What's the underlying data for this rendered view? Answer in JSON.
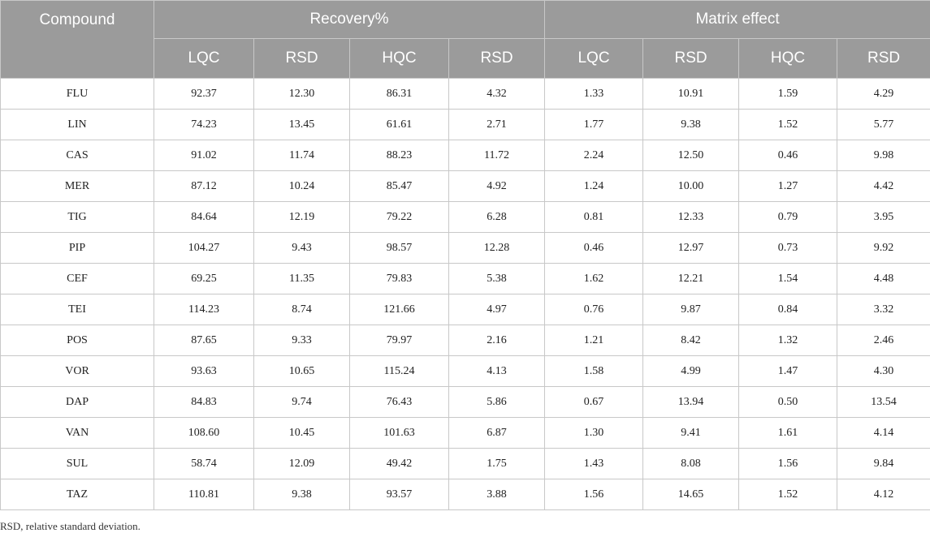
{
  "header": {
    "compound": "Compound",
    "recovery": "Recovery%",
    "matrix": "Matrix effect",
    "subcols": [
      "LQC",
      "RSD",
      "HQC",
      "RSD",
      "LQC",
      "RSD",
      "HQC",
      "RSD"
    ]
  },
  "rows": [
    [
      "FLU",
      "92.37",
      "12.30",
      "86.31",
      "4.32",
      "1.33",
      "10.91",
      "1.59",
      "4.29"
    ],
    [
      "LIN",
      "74.23",
      "13.45",
      "61.61",
      "2.71",
      "1.77",
      "9.38",
      "1.52",
      "5.77"
    ],
    [
      "CAS",
      "91.02",
      "11.74",
      "88.23",
      "11.72",
      "2.24",
      "12.50",
      "0.46",
      "9.98"
    ],
    [
      "MER",
      "87.12",
      "10.24",
      "85.47",
      "4.92",
      "1.24",
      "10.00",
      "1.27",
      "4.42"
    ],
    [
      "TIG",
      "84.64",
      "12.19",
      "79.22",
      "6.28",
      "0.81",
      "12.33",
      "0.79",
      "3.95"
    ],
    [
      "PIP",
      "104.27",
      "9.43",
      "98.57",
      "12.28",
      "0.46",
      "12.97",
      "0.73",
      "9.92"
    ],
    [
      "CEF",
      "69.25",
      "11.35",
      "79.83",
      "5.38",
      "1.62",
      "12.21",
      "1.54",
      "4.48"
    ],
    [
      "TEI",
      "114.23",
      "8.74",
      "121.66",
      "4.97",
      "0.76",
      "9.87",
      "0.84",
      "3.32"
    ],
    [
      "POS",
      "87.65",
      "9.33",
      "79.97",
      "2.16",
      "1.21",
      "8.42",
      "1.32",
      "2.46"
    ],
    [
      "VOR",
      "93.63",
      "10.65",
      "115.24",
      "4.13",
      "1.58",
      "4.99",
      "1.47",
      "4.30"
    ],
    [
      "DAP",
      "84.83",
      "9.74",
      "76.43",
      "5.86",
      "0.67",
      "13.94",
      "0.50",
      "13.54"
    ],
    [
      "VAN",
      "108.60",
      "10.45",
      "101.63",
      "6.87",
      "1.30",
      "9.41",
      "1.61",
      "4.14"
    ],
    [
      "SUL",
      "58.74",
      "12.09",
      "49.42",
      "1.75",
      "1.43",
      "8.08",
      "1.56",
      "9.84"
    ],
    [
      "TAZ",
      "110.81",
      "9.38",
      "93.57",
      "3.88",
      "1.56",
      "14.65",
      "1.52",
      "4.12"
    ]
  ],
  "footnote": "RSD, relative standard deviation."
}
